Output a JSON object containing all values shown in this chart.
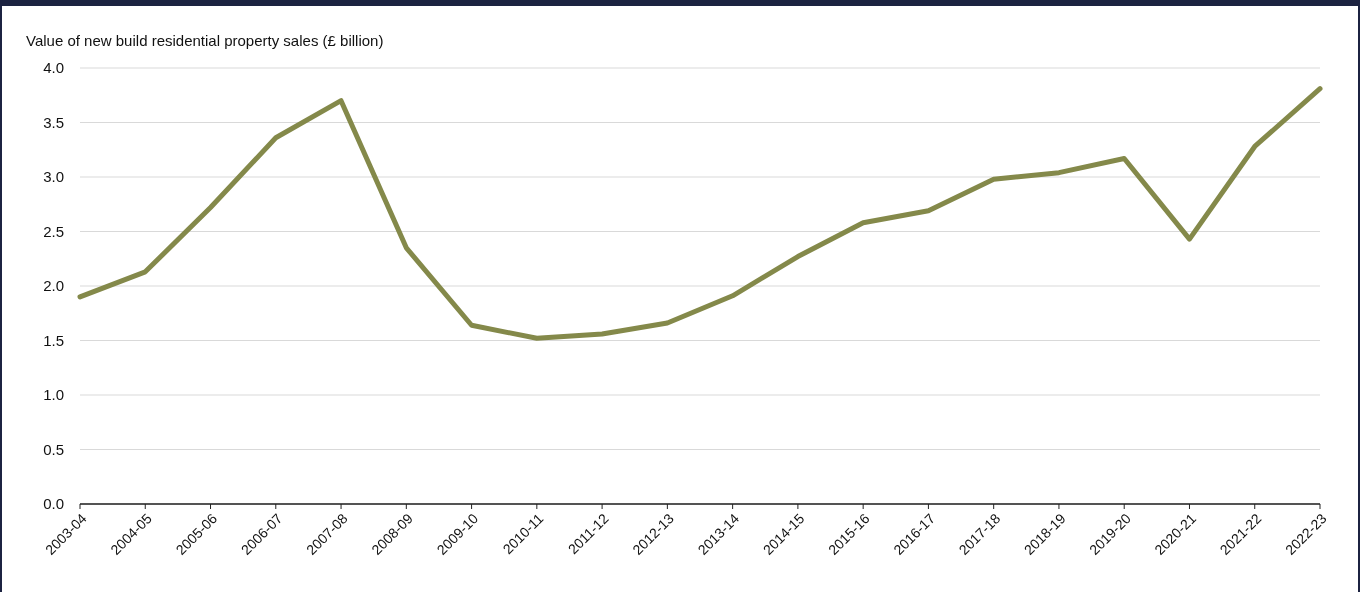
{
  "chart_data": {
    "type": "line",
    "ylabel": "Value of new build residential property sales (£ billion)",
    "categories": [
      "2003-04",
      "2004-05",
      "2005-06",
      "2006-07",
      "2007-08",
      "2008-09",
      "2009-10",
      "2010-11",
      "2011-12",
      "2012-13",
      "2013-14",
      "2014-15",
      "2015-16",
      "2016-17",
      "2017-18",
      "2018-19",
      "2019-20",
      "2020-21",
      "2021-22",
      "2022-23"
    ],
    "series": [
      {
        "color": "#84894a",
        "values": [
          1.9,
          2.13,
          2.72,
          3.36,
          3.7,
          2.35,
          1.64,
          1.52,
          1.56,
          1.66,
          1.91,
          2.27,
          2.58,
          2.69,
          2.98,
          3.04,
          3.17,
          2.43,
          3.28,
          3.81
        ]
      }
    ],
    "ylim": [
      0,
      4
    ],
    "yticks": [
      {
        "value": 0,
        "label": "0.0"
      },
      {
        "value": 0.5,
        "label": "0.5"
      },
      {
        "value": 1,
        "label": "1.0"
      },
      {
        "value": 1.5,
        "label": "1.5"
      },
      {
        "value": 2,
        "label": "2.0"
      },
      {
        "value": 2.5,
        "label": "2.5"
      },
      {
        "value": 3,
        "label": "3.0"
      },
      {
        "value": 3.5,
        "label": "3.5"
      },
      {
        "value": 4,
        "label": "4.0"
      }
    ],
    "grid": "y",
    "marker": "none",
    "line_style": "solid"
  }
}
